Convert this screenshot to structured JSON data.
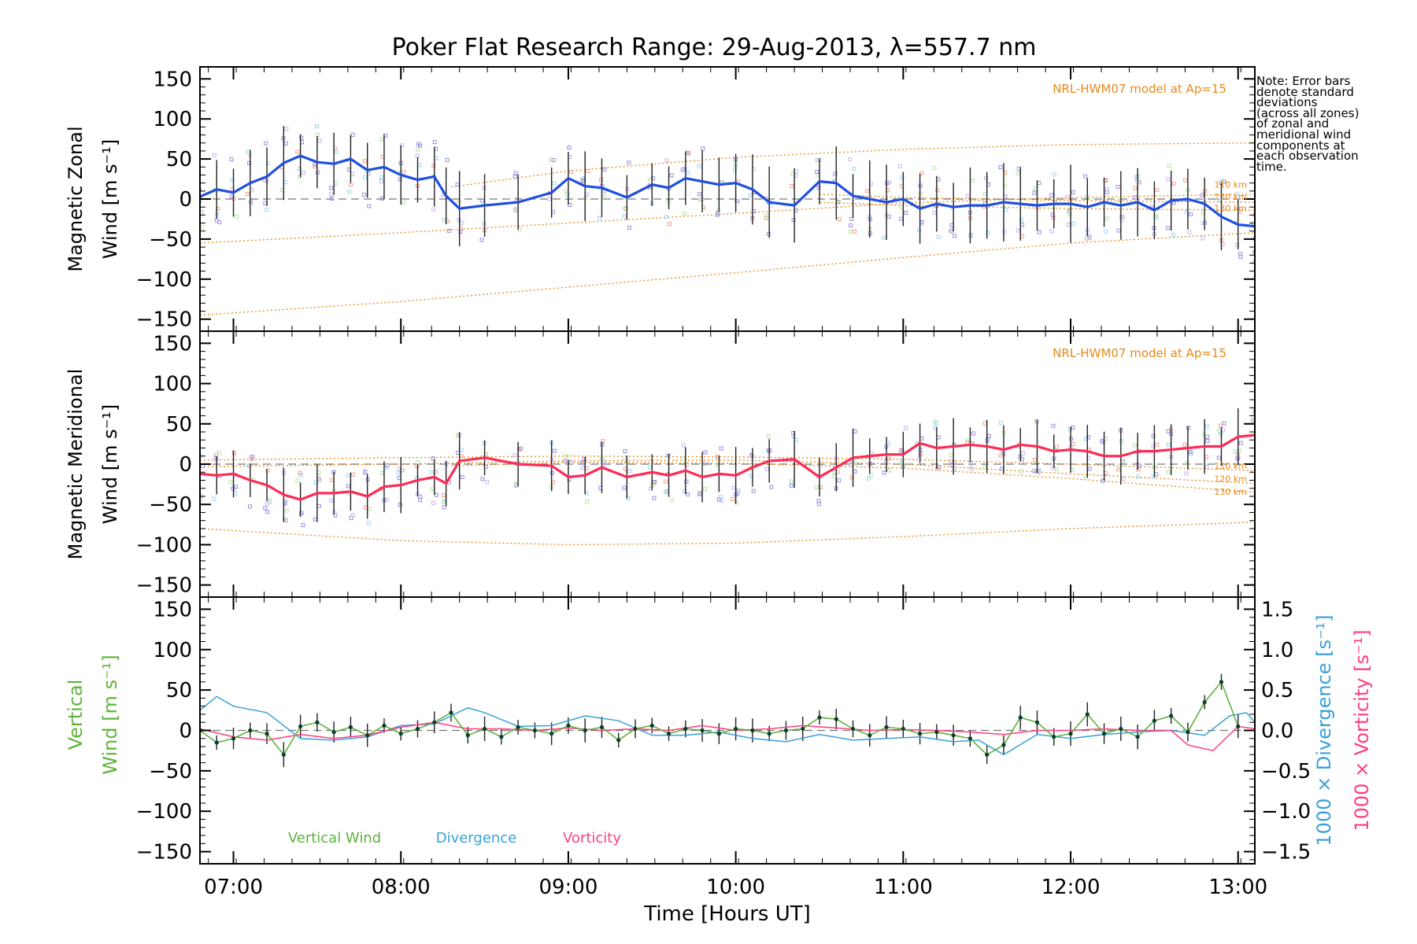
{
  "title": "Poker Flat Research Range: 29-Aug-2013, λ=557.7 nm",
  "note": [
    "Note: Error bars",
    "denote standard",
    "deviations",
    "(across all zones)",
    "of zonal and",
    "meridional wind",
    "components at",
    "each observation",
    "time."
  ],
  "colors": {
    "zonal": "#1f4fe0",
    "meridional": "#ff2a55",
    "vertical": "#5fb33b",
    "divergence": "#3aa0d8",
    "vorticity": "#ff3d7f",
    "model": "#e8891a",
    "scatter": "#9a8fe0"
  },
  "chart_data": [
    {
      "type": "line",
      "panel": "zonal",
      "ylabel": [
        "Magnetic Zonal",
        "Wind [m s⁻¹]"
      ],
      "ylim": [
        -165,
        165
      ],
      "yticks": [
        150,
        100,
        50,
        0,
        -50,
        -100,
        -150
      ],
      "model_label": "NRL-HWM07 model at Ap=15",
      "model_altitudes": [
        "110 km",
        "120 km",
        "130 km"
      ],
      "model_curves": [
        {
          "x": [
            6.8,
            8.0,
            9.0,
            10.0,
            11.0,
            12.0,
            13.1
          ],
          "y": [
            -55,
            -42,
            -30,
            -18,
            -5,
            2,
            6
          ]
        },
        {
          "x": [
            6.8,
            8.0,
            9.0,
            10.0,
            11.0,
            12.0,
            13.1
          ],
          "y": [
            -145,
            -128,
            -110,
            -92,
            -73,
            -55,
            -42
          ]
        },
        {
          "x": [
            8.3,
            9.0,
            10.0,
            11.0,
            12.0,
            13.1
          ],
          "y": [
            15,
            35,
            52,
            62,
            68,
            70
          ]
        },
        {
          "x": [
            10.5,
            11.0,
            12.0,
            13.1
          ],
          "y": [
            6,
            2,
            -2,
            -4
          ]
        },
        {
          "x": [
            10.5,
            11.0,
            12.0,
            13.1
          ],
          "y": [
            -4,
            -8,
            -12,
            -14
          ]
        }
      ],
      "series": [
        {
          "name": "Zonal Wind",
          "x": [
            6.8,
            6.9,
            7.0,
            7.1,
            7.2,
            7.3,
            7.4,
            7.5,
            7.6,
            7.7,
            7.8,
            7.9,
            8.0,
            8.1,
            8.2,
            8.27,
            8.35,
            8.5,
            8.7,
            8.9,
            9.0,
            9.1,
            9.2,
            9.35,
            9.5,
            9.6,
            9.7,
            9.8,
            9.9,
            10.0,
            10.1,
            10.2,
            10.35,
            10.5,
            10.6,
            10.7,
            10.8,
            10.9,
            11.0,
            11.1,
            11.2,
            11.3,
            11.4,
            11.5,
            11.6,
            11.7,
            11.8,
            11.9,
            12.0,
            12.1,
            12.2,
            12.3,
            12.4,
            12.5,
            12.6,
            12.7,
            12.8,
            12.9,
            13.0,
            13.1
          ],
          "y": [
            3,
            12,
            8,
            20,
            28,
            45,
            54,
            46,
            44,
            50,
            36,
            40,
            30,
            24,
            28,
            4,
            -12,
            -8,
            -4,
            8,
            26,
            16,
            14,
            2,
            18,
            14,
            26,
            22,
            18,
            20,
            12,
            -4,
            -8,
            22,
            20,
            4,
            0,
            -4,
            0,
            -12,
            -6,
            -10,
            -8,
            -8,
            -4,
            -6,
            -8,
            -6,
            -6,
            -10,
            -4,
            -8,
            -4,
            -14,
            -2,
            0,
            -6,
            -22,
            -32,
            -34
          ]
        }
      ],
      "error_half_width": 38
    },
    {
      "type": "line",
      "panel": "meridional",
      "ylabel": [
        "Magnetic Meridional",
        "Wind [m s⁻¹]"
      ],
      "ylim": [
        -165,
        165
      ],
      "yticks": [
        150,
        100,
        50,
        0,
        -50,
        -100,
        -150
      ],
      "model_label": "NRL-HWM07 model at Ap=15",
      "model_altitudes": [
        "110 km",
        "120 km",
        "130 km"
      ],
      "model_curves": [
        {
          "x": [
            6.8,
            8.0,
            9.0,
            10.0,
            11.0,
            12.0,
            13.1
          ],
          "y": [
            -80,
            -95,
            -100,
            -98,
            -90,
            -80,
            -72
          ]
        },
        {
          "x": [
            6.8,
            8.0,
            9.0,
            10.0,
            11.0,
            12.0,
            13.1
          ],
          "y": [
            5,
            8,
            10,
            9,
            6,
            0,
            -8
          ]
        },
        {
          "x": [
            6.8,
            8.0,
            9.0,
            10.0,
            11.0,
            12.0,
            13.1
          ],
          "y": [
            -3,
            0,
            4,
            5,
            0,
            -12,
            -24
          ]
        },
        {
          "x": [
            8.3,
            9.0,
            10.0,
            11.0,
            12.0,
            13.1
          ],
          "y": [
            -2,
            2,
            1,
            -5,
            -18,
            -35
          ]
        }
      ],
      "series": [
        {
          "name": "Meridional Wind",
          "x": [
            6.8,
            6.9,
            7.0,
            7.1,
            7.2,
            7.3,
            7.4,
            7.5,
            7.6,
            7.7,
            7.8,
            7.9,
            8.0,
            8.1,
            8.2,
            8.27,
            8.35,
            8.5,
            8.7,
            8.9,
            9.0,
            9.1,
            9.2,
            9.35,
            9.5,
            9.6,
            9.7,
            9.8,
            9.9,
            10.0,
            10.1,
            10.2,
            10.35,
            10.5,
            10.6,
            10.7,
            10.8,
            10.9,
            11.0,
            11.1,
            11.2,
            11.3,
            11.4,
            11.5,
            11.6,
            11.7,
            11.8,
            11.9,
            12.0,
            12.1,
            12.2,
            12.3,
            12.4,
            12.5,
            12.6,
            12.7,
            12.8,
            12.9,
            13.0,
            13.1
          ],
          "y": [
            -12,
            -14,
            -12,
            -20,
            -26,
            -38,
            -44,
            -36,
            -36,
            -34,
            -40,
            -28,
            -26,
            -20,
            -16,
            -24,
            4,
            8,
            0,
            -2,
            -16,
            -14,
            -4,
            -16,
            -10,
            -14,
            -8,
            -16,
            -12,
            -14,
            -4,
            4,
            6,
            -16,
            -4,
            8,
            10,
            12,
            12,
            26,
            20,
            22,
            24,
            22,
            18,
            24,
            22,
            16,
            18,
            16,
            10,
            10,
            16,
            16,
            18,
            20,
            22,
            22,
            34,
            36
          ]
        }
      ],
      "error_half_width": 28
    },
    {
      "type": "line",
      "panel": "vertical",
      "ylabel": [
        "Vertical",
        "Wind [m s⁻¹]"
      ],
      "ylim": [
        -165,
        165
      ],
      "yticks": [
        150,
        100,
        50,
        0,
        -50,
        -100,
        -150
      ],
      "y2label_divergence": "1000 × Divergence [s⁻¹]",
      "y2label_vorticity": "1000 × Vorticity [s⁻¹]",
      "y2lim": [
        -1.65,
        1.65
      ],
      "y2ticks": [
        "1.5",
        "1.0",
        "0.5",
        "0.0",
        "−0.5",
        "−1.0",
        "−1.5"
      ],
      "legend": [
        "Vertical Wind",
        "Divergence",
        "Vorticity"
      ],
      "xlabel": "Time [Hours UT]",
      "xlim": [
        6.8,
        13.1
      ],
      "xtick_labels": [
        "07:00",
        "08:00",
        "09:00",
        "10:00",
        "11:00",
        "12:00",
        "13:00"
      ],
      "series": [
        {
          "name": "Vertical Wind",
          "axis": "left",
          "x": [
            6.8,
            6.9,
            7.0,
            7.1,
            7.2,
            7.3,
            7.4,
            7.5,
            7.6,
            7.7,
            7.8,
            7.9,
            8.0,
            8.1,
            8.2,
            8.3,
            8.4,
            8.5,
            8.6,
            8.7,
            8.8,
            8.9,
            9.0,
            9.1,
            9.2,
            9.3,
            9.4,
            9.5,
            9.6,
            9.7,
            9.8,
            9.9,
            10.0,
            10.1,
            10.2,
            10.3,
            10.4,
            10.5,
            10.6,
            10.7,
            10.8,
            10.9,
            11.0,
            11.1,
            11.2,
            11.3,
            11.4,
            11.5,
            11.6,
            11.7,
            11.8,
            11.9,
            12.0,
            12.1,
            12.2,
            12.3,
            12.4,
            12.5,
            12.6,
            12.7,
            12.8,
            12.9,
            13.0
          ],
          "y": [
            0,
            -15,
            -10,
            0,
            -4,
            -30,
            5,
            10,
            -2,
            4,
            -6,
            6,
            -4,
            2,
            10,
            22,
            -6,
            2,
            -8,
            4,
            0,
            -4,
            6,
            0,
            4,
            -12,
            2,
            6,
            -4,
            2,
            0,
            -4,
            2,
            0,
            -4,
            0,
            2,
            16,
            14,
            2,
            -6,
            4,
            2,
            -4,
            -2,
            -6,
            -10,
            -30,
            -18,
            16,
            10,
            -8,
            -4,
            20,
            -4,
            2,
            -8,
            12,
            18,
            -2,
            35,
            60,
            5
          ]
        },
        {
          "name": "Divergence",
          "axis": "right",
          "x": [
            6.8,
            6.9,
            7.0,
            7.2,
            7.4,
            7.6,
            7.8,
            8.0,
            8.2,
            8.4,
            8.5,
            8.7,
            8.9,
            9.1,
            9.3,
            9.5,
            9.7,
            9.9,
            10.1,
            10.3,
            10.5,
            10.7,
            10.9,
            11.1,
            11.3,
            11.45,
            11.6,
            11.8,
            12.0,
            12.2,
            12.4,
            12.6,
            12.8,
            12.95,
            13.05,
            13.1
          ],
          "y": [
            0.25,
            0.42,
            0.3,
            0.22,
            -0.1,
            -0.12,
            -0.08,
            0.06,
            0.08,
            0.28,
            0.22,
            0.05,
            0.06,
            0.18,
            0.12,
            -0.06,
            -0.06,
            -0.02,
            -0.1,
            -0.14,
            -0.05,
            -0.12,
            -0.1,
            -0.08,
            -0.14,
            -0.12,
            -0.3,
            -0.05,
            -0.1,
            -0.05,
            -0.02,
            0.0,
            -0.06,
            0.18,
            0.22,
            0.1
          ]
        },
        {
          "name": "Vorticity",
          "axis": "right",
          "x": [
            6.8,
            7.0,
            7.2,
            7.4,
            7.6,
            7.8,
            8.0,
            8.2,
            8.4,
            8.6,
            8.8,
            9.0,
            9.2,
            9.4,
            9.6,
            9.8,
            10.0,
            10.2,
            10.4,
            10.6,
            10.8,
            11.0,
            11.2,
            11.4,
            11.6,
            11.8,
            12.0,
            12.2,
            12.4,
            12.6,
            12.7,
            12.85,
            13.0,
            13.1
          ],
          "y": [
            0.02,
            -0.08,
            -0.12,
            -0.05,
            -0.1,
            -0.06,
            0.04,
            0.1,
            0.02,
            0.02,
            0.0,
            0.03,
            0.0,
            0.02,
            0.0,
            0.06,
            0.0,
            0.02,
            0.06,
            0.03,
            0.0,
            0.01,
            0.0,
            -0.02,
            -0.05,
            0.0,
            0.0,
            0.02,
            0.0,
            0.0,
            -0.18,
            -0.25,
            0.05,
            0.02
          ]
        }
      ],
      "error_half_width": 12
    }
  ]
}
